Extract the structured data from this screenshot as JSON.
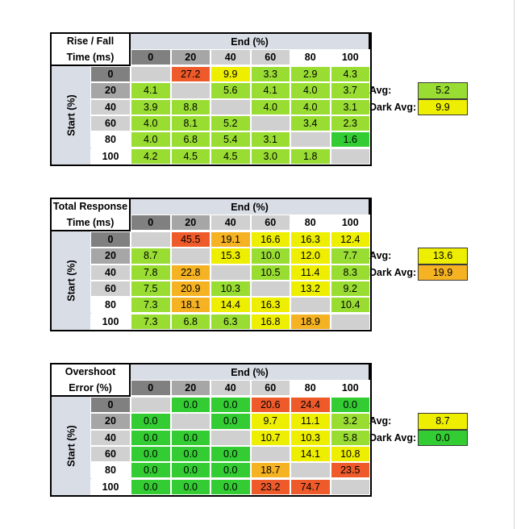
{
  "colors": {
    "green": "#33cc33",
    "light_green": "#99dd33",
    "yellow": "#eeee00",
    "orange": "#f5b223",
    "red": "#ee5a2a",
    "diagonal": "#d0d0d0",
    "header_bg": "#d9dde6"
  },
  "row_label_text": "Start (%)",
  "col_label_text": "End (%)",
  "avg_label": "Avg:",
  "dark_avg_label": "Dark Avg:",
  "tables": [
    {
      "title_line1": "Rise / Fall",
      "title_line2": "Time (ms)",
      "avg": "5.2",
      "avg_color": "light_green",
      "dark_avg": "9.9",
      "dark_avg_color": "yellow"
    },
    {
      "title_line1": "Total Response",
      "title_line2": "Time (ms)",
      "avg": "13.6",
      "avg_color": "yellow",
      "dark_avg": "19.9",
      "dark_avg_color": "orange"
    },
    {
      "title_line1": "Overshoot",
      "title_line2": "Error (%)",
      "avg": "8.7",
      "avg_color": "yellow",
      "dark_avg": "0.0",
      "dark_avg_color": "green"
    }
  ],
  "chart_data": [
    {
      "type": "heatmap",
      "title": "Rise / Fall Time (ms)",
      "xlabel": "End (%)",
      "ylabel": "Start (%)",
      "x": [
        "0",
        "20",
        "40",
        "60",
        "80",
        "100"
      ],
      "y": [
        "0",
        "20",
        "40",
        "60",
        "80",
        "100"
      ],
      "values": [
        [
          "",
          "27.2",
          "9.9",
          "3.3",
          "2.9",
          "4.3"
        ],
        [
          "4.1",
          "",
          "5.6",
          "4.1",
          "4.0",
          "3.7"
        ],
        [
          "3.9",
          "8.8",
          "",
          "4.0",
          "4.0",
          "3.1"
        ],
        [
          "4.0",
          "8.1",
          "5.2",
          "",
          "3.4",
          "2.3"
        ],
        [
          "4.0",
          "6.8",
          "5.4",
          "3.1",
          "",
          "1.6"
        ],
        [
          "4.2",
          "4.5",
          "4.5",
          "3.0",
          "1.8",
          ""
        ]
      ],
      "colors": [
        [
          "diagonal",
          "red",
          "yellow",
          "light_green",
          "light_green",
          "light_green"
        ],
        [
          "light_green",
          "diagonal",
          "light_green",
          "light_green",
          "light_green",
          "light_green"
        ],
        [
          "light_green",
          "light_green",
          "diagonal",
          "light_green",
          "light_green",
          "light_green"
        ],
        [
          "light_green",
          "light_green",
          "light_green",
          "diagonal",
          "light_green",
          "light_green"
        ],
        [
          "light_green",
          "light_green",
          "light_green",
          "light_green",
          "diagonal",
          "green"
        ],
        [
          "light_green",
          "light_green",
          "light_green",
          "light_green",
          "light_green",
          "diagonal"
        ]
      ]
    },
    {
      "type": "heatmap",
      "title": "Total Response Time (ms)",
      "xlabel": "End (%)",
      "ylabel": "Start (%)",
      "x": [
        "0",
        "20",
        "40",
        "60",
        "80",
        "100"
      ],
      "y": [
        "0",
        "20",
        "40",
        "60",
        "80",
        "100"
      ],
      "values": [
        [
          "",
          "45.5",
          "19.1",
          "16.6",
          "16.3",
          "12.4"
        ],
        [
          "8.7",
          "",
          "15.3",
          "10.0",
          "12.0",
          "7.7"
        ],
        [
          "7.8",
          "22.8",
          "",
          "10.5",
          "11.4",
          "8.3"
        ],
        [
          "7.5",
          "20.9",
          "10.3",
          "",
          "13.2",
          "9.2"
        ],
        [
          "7.3",
          "18.1",
          "14.4",
          "16.3",
          "",
          "10.4"
        ],
        [
          "7.3",
          "6.8",
          "6.3",
          "16.8",
          "18.9",
          ""
        ]
      ],
      "colors": [
        [
          "diagonal",
          "red",
          "orange",
          "yellow",
          "yellow",
          "yellow"
        ],
        [
          "light_green",
          "diagonal",
          "yellow",
          "light_green",
          "yellow",
          "light_green"
        ],
        [
          "light_green",
          "orange",
          "diagonal",
          "light_green",
          "yellow",
          "light_green"
        ],
        [
          "light_green",
          "orange",
          "light_green",
          "diagonal",
          "yellow",
          "light_green"
        ],
        [
          "light_green",
          "orange",
          "yellow",
          "yellow",
          "diagonal",
          "light_green"
        ],
        [
          "light_green",
          "light_green",
          "light_green",
          "yellow",
          "orange",
          "diagonal"
        ]
      ]
    },
    {
      "type": "heatmap",
      "title": "Overshoot Error (%)",
      "xlabel": "End (%)",
      "ylabel": "Start (%)",
      "x": [
        "0",
        "20",
        "40",
        "60",
        "80",
        "100"
      ],
      "y": [
        "0",
        "20",
        "40",
        "60",
        "80",
        "100"
      ],
      "values": [
        [
          "",
          "0.0",
          "0.0",
          "20.6",
          "24.4",
          "0.0"
        ],
        [
          "0.0",
          "",
          "0.0",
          "9.7",
          "11.1",
          "3.2"
        ],
        [
          "0.0",
          "0.0",
          "",
          "10.7",
          "10.3",
          "5.8"
        ],
        [
          "0.0",
          "0.0",
          "0.0",
          "",
          "14.1",
          "10.8"
        ],
        [
          "0.0",
          "0.0",
          "0.0",
          "18.7",
          "",
          "23.5"
        ],
        [
          "0.0",
          "0.0",
          "0.0",
          "23.2",
          "74.7",
          ""
        ]
      ],
      "colors": [
        [
          "diagonal",
          "green",
          "green",
          "red",
          "red",
          "green"
        ],
        [
          "green",
          "diagonal",
          "green",
          "yellow",
          "yellow",
          "light_green"
        ],
        [
          "green",
          "green",
          "diagonal",
          "yellow",
          "yellow",
          "light_green"
        ],
        [
          "green",
          "green",
          "green",
          "diagonal",
          "yellow",
          "yellow"
        ],
        [
          "green",
          "green",
          "green",
          "orange",
          "diagonal",
          "red"
        ],
        [
          "green",
          "green",
          "green",
          "red",
          "red",
          "diagonal"
        ]
      ]
    }
  ]
}
